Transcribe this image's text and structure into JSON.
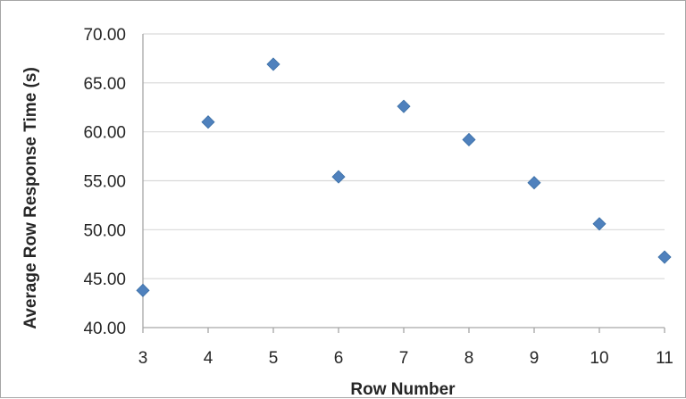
{
  "chart_data": {
    "type": "scatter",
    "title": "",
    "xlabel": "Row Number",
    "ylabel": "Average Row Response Time (s)",
    "xlim": [
      3,
      11
    ],
    "ylim": [
      40,
      70
    ],
    "x_ticks": [
      "3",
      "4",
      "5",
      "6",
      "7",
      "8",
      "9",
      "10",
      "11"
    ],
    "y_ticks": [
      "40.00",
      "45.00",
      "50.00",
      "55.00",
      "60.00",
      "65.00",
      "70.00"
    ],
    "grid": "horizontal",
    "legend": "none",
    "marker": "diamond",
    "series": [
      {
        "color": "#4f81bd",
        "points": [
          {
            "x": 3,
            "y": 43.8
          },
          {
            "x": 4,
            "y": 61.0
          },
          {
            "x": 5,
            "y": 66.9
          },
          {
            "x": 6,
            "y": 55.4
          },
          {
            "x": 7,
            "y": 62.6
          },
          {
            "x": 8,
            "y": 59.2
          },
          {
            "x": 9,
            "y": 54.8
          },
          {
            "x": 10,
            "y": 50.6
          },
          {
            "x": 11,
            "y": 47.2
          }
        ]
      }
    ]
  }
}
